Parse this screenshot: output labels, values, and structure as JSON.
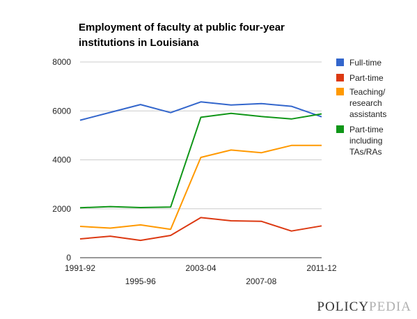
{
  "chart_data": {
    "type": "line",
    "title_lines": [
      "Employment of faculty at public four-year",
      "institutions in Louisiana"
    ],
    "x": [
      "1991-92",
      "1993-94",
      "1995-96",
      "1997-98",
      "2003-04",
      "2005-06",
      "2007-08",
      "2009-10",
      "2011-12"
    ],
    "x_tick_labels": [
      {
        "label": "1991-92",
        "index": 0,
        "row": 1
      },
      {
        "label": "1995-96",
        "index": 2,
        "row": 2
      },
      {
        "label": "2003-04",
        "index": 4,
        "row": 1
      },
      {
        "label": "2007-08",
        "index": 6,
        "row": 2
      },
      {
        "label": "2011-12",
        "index": 8,
        "row": 1
      }
    ],
    "ylim": [
      0,
      8000
    ],
    "y_ticks": [
      "0",
      "2000",
      "4000",
      "6000",
      "8000"
    ],
    "grid": true,
    "legend_position": "right",
    "series": [
      {
        "name": "Full-time",
        "color": "#3366cc",
        "values": [
          5620,
          5940,
          6260,
          5930,
          6370,
          6240,
          6300,
          6190,
          5760
        ]
      },
      {
        "name": "Part-time",
        "color": "#dc3912",
        "values": [
          770,
          880,
          710,
          910,
          1640,
          1510,
          1490,
          1090,
          1300
        ]
      },
      {
        "name": "Teaching/ research assistants",
        "color": "#ff9900",
        "values": [
          1280,
          1210,
          1340,
          1160,
          4100,
          4400,
          4290,
          4590,
          4590
        ]
      },
      {
        "name": "Part-time including TAs/RAs",
        "color": "#109618",
        "values": [
          2040,
          2090,
          2050,
          2070,
          5740,
          5900,
          5770,
          5670,
          5880
        ]
      }
    ]
  },
  "legend_labels": [
    [
      "Full-time"
    ],
    [
      "Part-time"
    ],
    [
      "Teaching/",
      "research",
      "assistants"
    ],
    [
      "Part-time",
      "including",
      "TAs/RAs"
    ]
  ],
  "logo": {
    "part1": "POLICY",
    "part2": "PEDIA"
  }
}
